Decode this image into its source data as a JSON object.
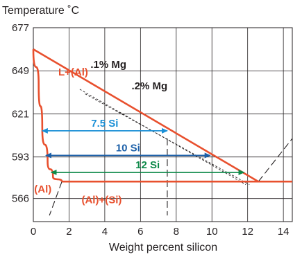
{
  "chart_data": {
    "type": "line",
    "title": "Temperature ˚C",
    "xlabel": "Weight percent silicon",
    "ylabel": "",
    "xlim": [
      0,
      14.5
    ],
    "ylim": [
      551,
      677
    ],
    "x_ticks": [
      0,
      2,
      4,
      6,
      8,
      10,
      12,
      14
    ],
    "x_tick_labels": [
      "0",
      "2",
      "4",
      "6",
      "8",
      "10",
      "12",
      "14"
    ],
    "y_ticks": [
      566,
      593,
      621,
      649,
      677
    ],
    "y_tick_labels": [
      "566",
      "593",
      "621",
      "649",
      "677"
    ],
    "grid": true,
    "colors": {
      "phase_line": "#e8502e",
      "arrow_blue_light": "#1a8fd6",
      "arrow_blue_dark": "#1b5fa8",
      "arrow_green": "#0e8a4a",
      "text_dark": "#231f20"
    },
    "phase_lines": [
      {
        "kind": "liquidus",
        "x": [
          0,
          12.6
        ],
        "y": [
          663,
          577
        ]
      },
      {
        "kind": "eutectic",
        "x": [
          1.6,
          14.5
        ],
        "y": [
          577,
          577
        ]
      },
      {
        "kind": "solvus",
        "x": [
          0,
          0.3,
          0.5,
          0.8,
          1.1,
          1.6
        ],
        "y": [
          663,
          640,
          612,
          590,
          580,
          577
        ]
      }
    ],
    "dashed_lines": [
      {
        "kind": "mg_0.1_liquidus",
        "x": [
          2.6,
          11.9
        ],
        "y": [
          637,
          575
        ]
      },
      {
        "kind": "mg_0.2_liquidus",
        "x": [
          2.9,
          12.1
        ],
        "y": [
          634,
          575
        ]
      },
      {
        "kind": "eutectic_extension",
        "x": [
          12.6,
          14.5
        ],
        "y": [
          577,
          605
        ]
      },
      {
        "kind": "solvus_extension",
        "x": [
          1.6,
          0.9
        ],
        "y": [
          577,
          555
        ]
      },
      {
        "kind": "composition_7.5_si",
        "x": [
          7.5,
          7.5
        ],
        "y": [
          605,
          555
        ]
      }
    ],
    "arrows": [
      {
        "label": "7.5 Si",
        "x": [
          0.5,
          7.5
        ],
        "y": 610
      },
      {
        "label": "10 Si",
        "x": [
          0.7,
          9.9
        ],
        "y": 594
      },
      {
        "label": "12 Si",
        "x": [
          1.0,
          11.8
        ],
        "y": 583
      }
    ],
    "annotations": [
      {
        "text": "L+(Al)",
        "x": 1.4,
        "y": 646
      },
      {
        "text": ".1% Mg",
        "x": 3.2,
        "y": 651
      },
      {
        "text": ".2% Mg",
        "x": 5.5,
        "y": 637
      },
      {
        "text": "(Al)",
        "x": 0.05,
        "y": 570
      },
      {
        "text": "(Al)+(Si)",
        "x": 2.7,
        "y": 563
      }
    ]
  }
}
